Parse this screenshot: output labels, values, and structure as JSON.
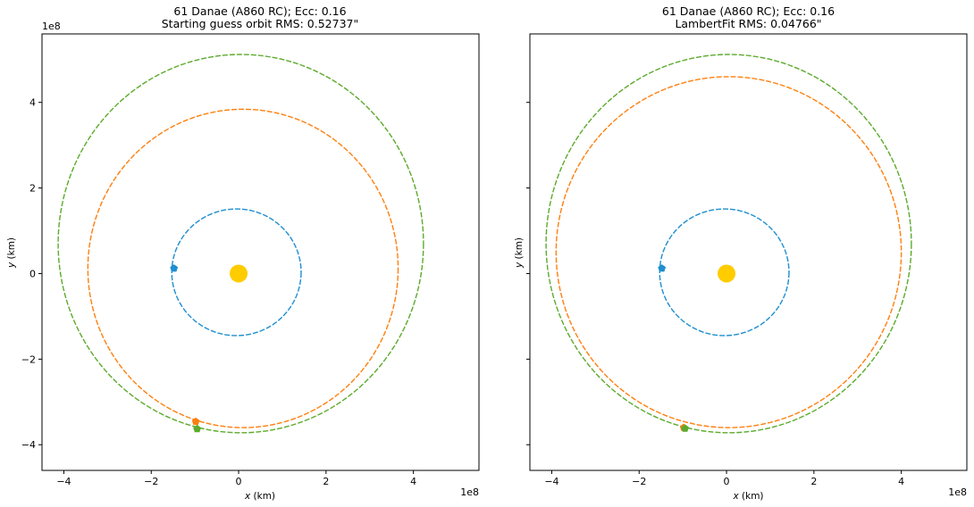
{
  "figure": {
    "panels": [
      {
        "title_line1": "61 Danae (A860 RC); Ecc: 0.16",
        "title_line2": "Starting guess orbit RMS: 0.52737\"",
        "x_axis_label": "x (km)",
        "y_axis_label": "y (km)",
        "x_offset_label": "1e8",
        "y_offset_label": "1e8"
      },
      {
        "title_line1": "61 Danae (A860 RC); Ecc: 0.16",
        "title_line2": "LambertFit RMS: 0.04766\"",
        "x_axis_label": "x (km)",
        "y_axis_label": "y (km)",
        "x_offset_label": "1e8",
        "y_offset_label": ""
      }
    ]
  },
  "chart_data": [
    {
      "type": "scatter",
      "title": "61 Danae (A860 RC); Ecc: 0.16\nStarting guess orbit RMS: 0.52737\"",
      "xlabel": "x (km)",
      "ylabel": "y (km)",
      "scale_factor": "1e8",
      "xlim": [
        -4.5,
        5.5
      ],
      "ylim": [
        -4.6,
        5.6
      ],
      "xticks": [
        -4,
        -2,
        0,
        2,
        4
      ],
      "yticks": [
        -4,
        -2,
        0,
        2,
        4
      ],
      "xtick_labels": [
        "−4",
        "−2",
        "0",
        "2",
        "4"
      ],
      "ytick_labels": [
        "−4",
        "−2",
        "0",
        "2",
        "4"
      ],
      "grid": false,
      "sun": {
        "x": 0,
        "y": 0,
        "color": "#ffcc00"
      },
      "orbits": [
        {
          "color": "#1f8fd0",
          "cx": -0.05,
          "cy": 0.03,
          "rx": 1.48,
          "ry": 1.48
        },
        {
          "color": "#ff7f0e",
          "cx": 0.1,
          "cy": 0.12,
          "rx": 3.55,
          "ry": 3.72
        },
        {
          "color": "#5caa2c",
          "cx": 0.05,
          "cy": 0.7,
          "rx": 4.18,
          "ry": 4.42
        }
      ],
      "markers": [
        {
          "color": "#1f8fd0",
          "x": -1.48,
          "y": 0.12
        },
        {
          "color": "#ff7f0e",
          "x": -0.98,
          "y": -3.46
        },
        {
          "color": "#5caa2c",
          "x": -0.95,
          "y": -3.63
        }
      ]
    },
    {
      "type": "scatter",
      "title": "61 Danae (A860 RC); Ecc: 0.16\nLambertFit RMS: 0.04766\"",
      "xlabel": "x (km)",
      "ylabel": "y (km)",
      "scale_factor": "1e8",
      "xlim": [
        -4.5,
        5.5
      ],
      "ylim": [
        -4.6,
        5.6
      ],
      "xticks": [
        -4,
        -2,
        0,
        2,
        4
      ],
      "yticks": [
        -4,
        -2,
        0,
        2,
        4
      ],
      "xtick_labels": [
        "−4",
        "−2",
        "0",
        "2",
        "4"
      ],
      "ytick_labels": [],
      "grid": false,
      "sun": {
        "x": 0,
        "y": 0,
        "color": "#ffcc00"
      },
      "orbits": [
        {
          "color": "#1f8fd0",
          "cx": -0.05,
          "cy": 0.03,
          "rx": 1.48,
          "ry": 1.48
        },
        {
          "color": "#ff7f0e",
          "cx": 0.05,
          "cy": 0.5,
          "rx": 3.95,
          "ry": 4.1
        },
        {
          "color": "#5caa2c",
          "cx": 0.05,
          "cy": 0.7,
          "rx": 4.18,
          "ry": 4.42
        }
      ],
      "markers": [
        {
          "color": "#1f8fd0",
          "x": -1.48,
          "y": 0.12
        },
        {
          "color": "#ff7f0e",
          "x": -0.98,
          "y": -3.6
        },
        {
          "color": "#5caa2c",
          "x": -0.95,
          "y": -3.62
        }
      ]
    }
  ]
}
